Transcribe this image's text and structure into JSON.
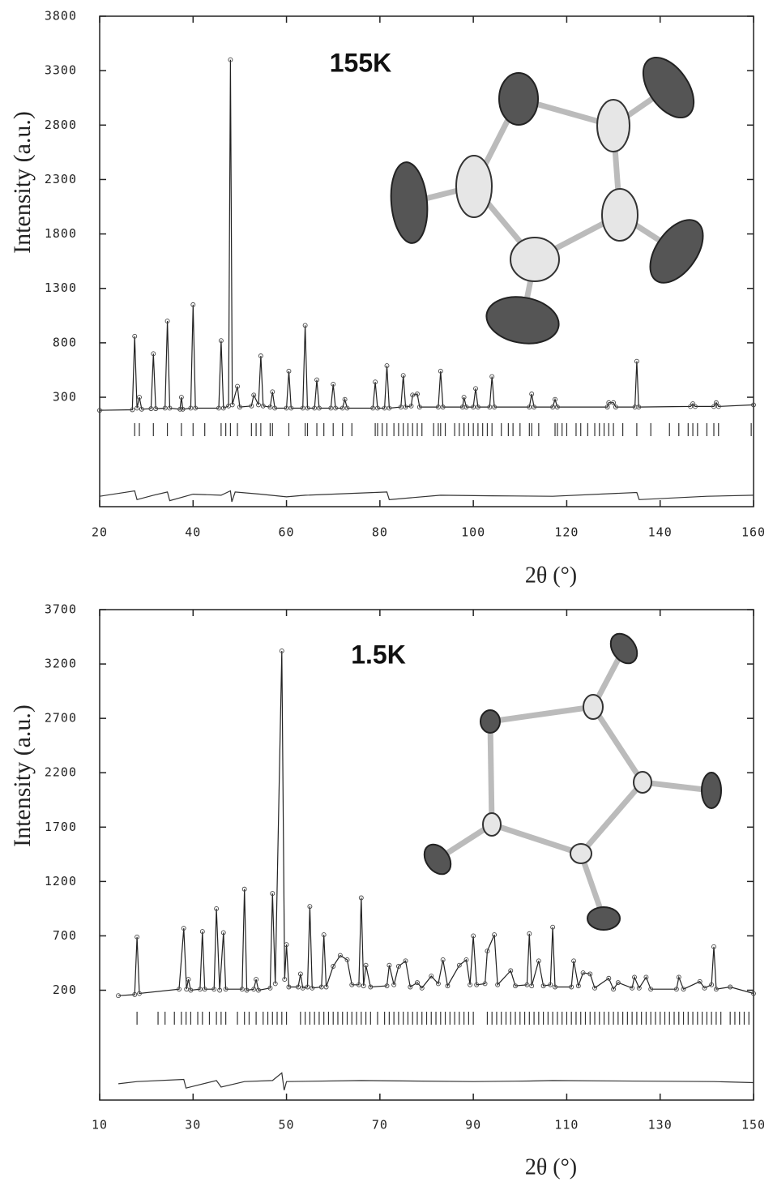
{
  "chart_data": [
    {
      "type": "line",
      "title": "155K",
      "xlabel": "2θ (°)",
      "ylabel": "Intensity (a.u.)",
      "xlim": [
        20,
        160
      ],
      "ylim": [
        -705,
        3800
      ],
      "xticks": [
        20,
        40,
        60,
        80,
        100,
        120,
        140,
        160
      ],
      "yticks": [
        300,
        800,
        1300,
        1800,
        2300,
        2800,
        3300,
        3800
      ],
      "series": [
        {
          "color": "#222",
          "markers": true,
          "x": [
            20,
            27,
            27.5,
            28,
            28.5,
            29,
            31,
            31.5,
            32,
            34,
            34.5,
            35,
            37.2,
            37.5,
            37.8,
            39.5,
            40,
            40.5,
            45.5,
            46,
            46.5,
            47.6,
            48,
            48.4,
            49.5,
            50,
            52.5,
            53,
            54,
            54.5,
            55,
            56.5,
            57,
            57.5,
            60,
            60.5,
            61,
            63.5,
            64,
            64.5,
            66,
            66.5,
            67,
            69.5,
            70,
            70.5,
            72,
            72.5,
            73,
            78.5,
            79,
            79.5,
            81,
            81.5,
            82,
            84.5,
            85,
            85.5,
            86.7,
            87,
            88,
            88.5,
            92.5,
            93,
            93.5,
            97.7,
            98,
            98.5,
            100,
            100.5,
            101,
            103.5,
            104,
            104.5,
            112,
            112.5,
            113,
            117,
            117.5,
            118,
            128.7,
            129,
            130,
            130.5,
            134.6,
            135,
            135.4,
            146.5,
            147,
            147.5,
            151.5,
            152,
            152.5,
            160
          ],
          "values": [
            180,
            185,
            860,
            200,
            300,
            190,
            195,
            700,
            195,
            200,
            1000,
            200,
            190,
            300,
            190,
            200,
            1150,
            200,
            200,
            820,
            200,
            220,
            3400,
            230,
            400,
            210,
            220,
            320,
            230,
            680,
            220,
            210,
            350,
            200,
            200,
            540,
            200,
            200,
            960,
            200,
            200,
            460,
            200,
            200,
            420,
            200,
            200,
            280,
            200,
            200,
            440,
            200,
            200,
            590,
            200,
            210,
            500,
            210,
            220,
            320,
            330,
            210,
            210,
            540,
            210,
            210,
            300,
            210,
            210,
            380,
            210,
            210,
            490,
            210,
            210,
            330,
            210,
            210,
            280,
            210,
            210,
            250,
            250,
            210,
            210,
            630,
            210,
            215,
            240,
            215,
            215,
            250,
            215,
            230
          ]
        },
        {
          "color": "#333",
          "markers": false,
          "x": [
            20,
            27.5,
            28,
            31.5,
            34.5,
            35,
            40,
            46,
            48,
            48.3,
            49,
            54.5,
            60,
            64,
            81.5,
            82,
            93,
            104,
            117,
            135,
            135.5,
            150,
            160
          ],
          "values": [
            -610,
            -560,
            -640,
            -600,
            -570,
            -650,
            -590,
            -600,
            -560,
            -660,
            -570,
            -590,
            -615,
            -600,
            -570,
            -640,
            -600,
            -605,
            -610,
            -575,
            -640,
            -610,
            -600
          ]
        }
      ],
      "reflections": [
        27.5,
        28.5,
        31.5,
        34.5,
        37.5,
        40,
        42.5,
        46,
        47,
        48,
        49.5,
        52.5,
        53.5,
        54.5,
        56.5,
        57,
        60.5,
        64,
        64.5,
        66.5,
        68,
        70,
        72,
        74,
        79,
        79.5,
        80.5,
        81.5,
        83,
        84,
        85,
        86,
        87,
        88,
        89,
        91.5,
        92.5,
        93,
        94,
        96,
        97,
        98,
        99,
        100,
        101,
        102,
        103,
        104,
        106,
        107.5,
        108.5,
        110,
        112,
        112.5,
        114,
        117.5,
        118,
        119,
        120,
        122,
        123,
        124.5,
        126,
        127,
        128,
        129,
        130,
        132,
        135,
        138,
        142,
        144,
        146,
        147,
        148,
        150,
        151.5,
        152.5,
        159.5
      ]
    },
    {
      "type": "line",
      "title": "1.5K",
      "xlabel": "2θ (°)",
      "ylabel": "Intensity (a.u.)",
      "xlim": [
        10,
        150
      ],
      "ylim": [
        -810,
        3700
      ],
      "xticks": [
        10,
        30,
        50,
        70,
        90,
        110,
        130,
        150
      ],
      "yticks": [
        200,
        700,
        1200,
        1700,
        2200,
        2700,
        3200,
        3700
      ],
      "series": [
        {
          "color": "#222",
          "markers": true,
          "x": [
            14,
            17.5,
            18,
            18.5,
            27,
            28,
            28.6,
            29,
            29.5,
            31.5,
            32,
            32.5,
            34.5,
            35,
            35.7,
            36.5,
            37,
            40.5,
            41,
            41.5,
            43,
            43.5,
            44,
            46.5,
            47,
            47.6,
            49,
            49.6,
            50,
            50.5,
            52.5,
            53,
            53.5,
            54.5,
            55,
            55.5,
            57.5,
            58,
            58.5,
            60,
            61.5,
            63,
            64,
            65.5,
            66,
            66.5,
            67,
            68,
            71.5,
            72,
            73,
            74,
            75.5,
            76.5,
            78,
            79,
            81,
            82.5,
            83.5,
            84.5,
            87,
            88.5,
            89.3,
            90,
            90.7,
            92.5,
            93,
            94.5,
            95.2,
            98,
            99,
            101.5,
            102,
            102.5,
            104,
            105,
            106.5,
            107,
            107.5,
            111,
            111.5,
            112.5,
            113.5,
            115,
            116,
            119,
            120,
            121,
            124,
            124.5,
            125.5,
            127,
            128,
            133.5,
            134,
            135,
            138.5,
            139.5,
            141,
            141.5,
            142,
            145,
            150
          ],
          "values": [
            150,
            160,
            690,
            170,
            210,
            770,
            210,
            300,
            200,
            210,
            740,
            210,
            210,
            950,
            200,
            730,
            210,
            210,
            1130,
            200,
            210,
            300,
            200,
            220,
            1090,
            260,
            3320,
            300,
            620,
            230,
            230,
            350,
            220,
            230,
            970,
            220,
            230,
            710,
            230,
            420,
            520,
            480,
            250,
            250,
            1050,
            240,
            430,
            230,
            240,
            430,
            250,
            420,
            470,
            230,
            270,
            220,
            330,
            260,
            480,
            240,
            430,
            480,
            250,
            700,
            250,
            260,
            560,
            710,
            250,
            380,
            240,
            250,
            720,
            240,
            470,
            240,
            250,
            780,
            230,
            230,
            470,
            240,
            360,
            350,
            220,
            310,
            210,
            270,
            220,
            320,
            220,
            320,
            210,
            210,
            320,
            210,
            280,
            220,
            250,
            600,
            210,
            230,
            170
          ]
        },
        {
          "color": "#333",
          "markers": false,
          "x": [
            14,
            18,
            28,
            28.5,
            35,
            36,
            41,
            47,
            49,
            49.5,
            50,
            66,
            90,
            102,
            107,
            141.5,
            150
          ],
          "values": [
            -660,
            -640,
            -620,
            -700,
            -630,
            -690,
            -640,
            -630,
            -560,
            -720,
            -640,
            -630,
            -640,
            -635,
            -630,
            -640,
            -650
          ]
        }
      ],
      "reflections": [
        18,
        22.5,
        24,
        26,
        27.5,
        28.5,
        29.5,
        31,
        32,
        33.5,
        35,
        36,
        37,
        39.5,
        41,
        42,
        43.5,
        45,
        46,
        47,
        48,
        49,
        50,
        53,
        54,
        55,
        56,
        57,
        58,
        59,
        60,
        61,
        62,
        63,
        64,
        65,
        66,
        67,
        68,
        69.5,
        71,
        72,
        73,
        74,
        75,
        76,
        77,
        78,
        79,
        80,
        81,
        82,
        83,
        84,
        85,
        86,
        87,
        88,
        89,
        90,
        93,
        94,
        95,
        96,
        97,
        98,
        99,
        100,
        101,
        102,
        103,
        104,
        105,
        106,
        107,
        108,
        109,
        110,
        111,
        112,
        113,
        114,
        115,
        116,
        117,
        118,
        119,
        120,
        121,
        122,
        123,
        124,
        125,
        126,
        127,
        128,
        129,
        130,
        131,
        132,
        133,
        134,
        135,
        136,
        137,
        138,
        139,
        140,
        141,
        142,
        143,
        145,
        146,
        147,
        148,
        149
      ]
    }
  ]
}
